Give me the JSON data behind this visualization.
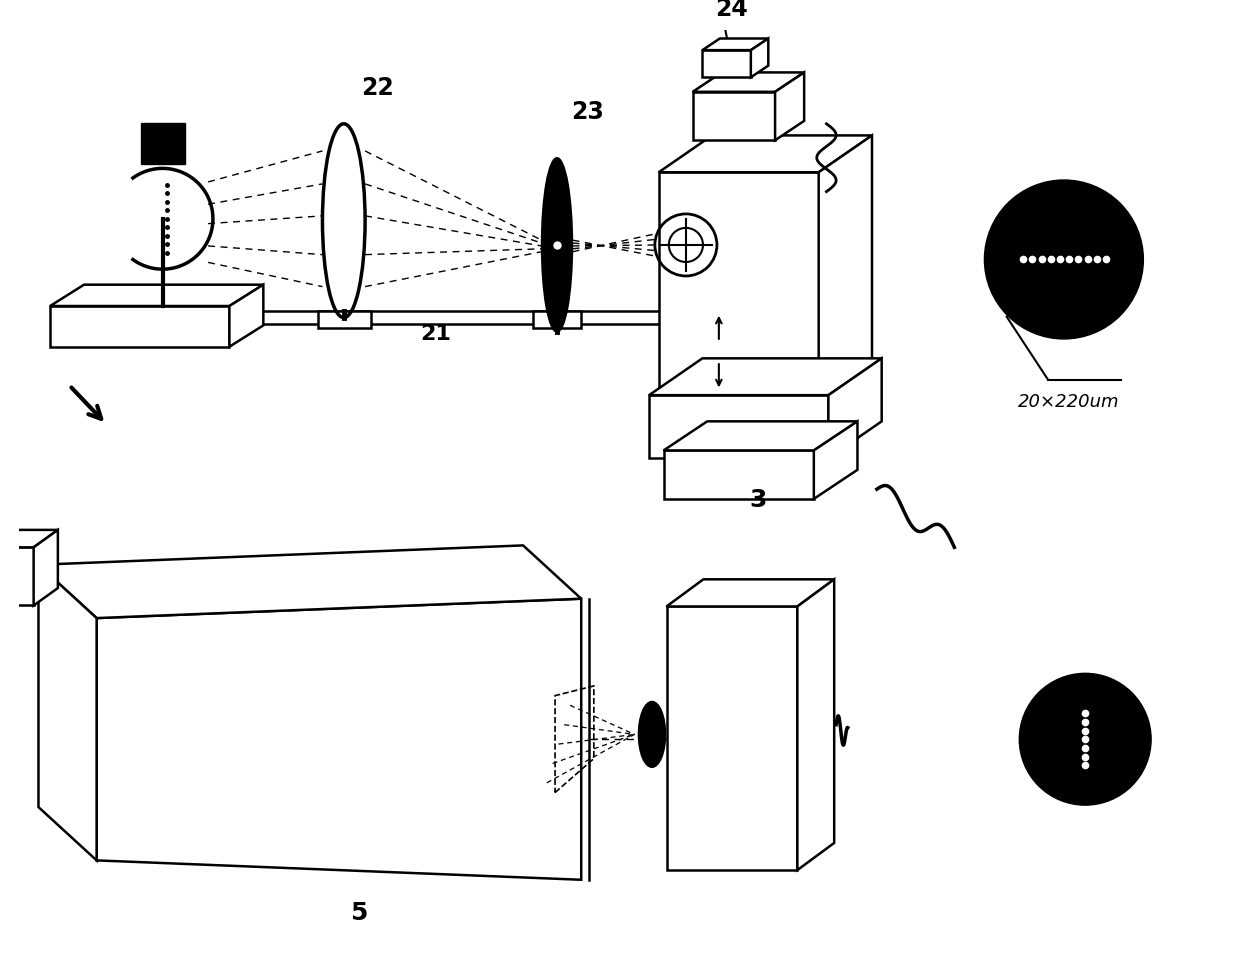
{
  "bg_color": "#ffffff",
  "line_color": "#000000",
  "label_22": "22",
  "label_23": "23",
  "label_24": "24",
  "label_21": "21",
  "label_3": "3",
  "label_5": "5",
  "label_dim": "20×220um"
}
